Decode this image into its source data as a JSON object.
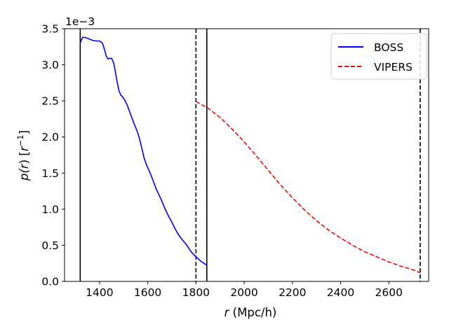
{
  "chart_data": {
    "type": "line",
    "title": "",
    "xlabel_var": "r",
    "xlabel_unit": " (Mpc/h)",
    "ylabel_left": "p(",
    "ylabel_var": "r",
    "ylabel_mid": ") [",
    "ylabel_var2": "r",
    "ylabel_exp": "−1",
    "ylabel_right": "]",
    "offset_base": "1e",
    "offset_exp": "−3",
    "xlim": [
      1255,
      2765
    ],
    "ylim": [
      0,
      3.5
    ],
    "grid": false,
    "legend_position": "top-right",
    "x_ticks": [
      1400,
      1600,
      1800,
      2000,
      2200,
      2400,
      2600
    ],
    "y_ticks": [
      0,
      0.5,
      1.0,
      1.5,
      2.0,
      2.5,
      3.0,
      3.5
    ],
    "y_tick_labels": [
      "0.0",
      "0.5",
      "1.0",
      "1.5",
      "2.0",
      "2.5",
      "3.0",
      "3.5"
    ],
    "series": [
      {
        "name": "BOSS",
        "color": "#0000ff",
        "style": "solid",
        "x": [
          1320,
          1323,
          1330,
          1340,
          1355,
          1370,
          1385,
          1400,
          1412,
          1420,
          1428,
          1435,
          1442,
          1450,
          1458,
          1465,
          1472,
          1480,
          1488,
          1495,
          1505,
          1515,
          1525,
          1535,
          1545,
          1555,
          1565,
          1575,
          1585,
          1595,
          1605,
          1615,
          1625,
          1635,
          1645,
          1655,
          1665,
          1675,
          1690,
          1700,
          1710,
          1725,
          1740,
          1760,
          1780,
          1800,
          1820,
          1840,
          1845
        ],
        "y": [
          3.3,
          3.33,
          3.38,
          3.38,
          3.36,
          3.34,
          3.33,
          3.33,
          3.3,
          3.22,
          3.12,
          3.08,
          3.09,
          3.09,
          3.03,
          2.92,
          2.78,
          2.65,
          2.58,
          2.56,
          2.51,
          2.44,
          2.35,
          2.26,
          2.17,
          2.09,
          1.99,
          1.85,
          1.71,
          1.61,
          1.54,
          1.46,
          1.37,
          1.28,
          1.21,
          1.14,
          1.06,
          0.98,
          0.88,
          0.82,
          0.75,
          0.66,
          0.59,
          0.51,
          0.41,
          0.34,
          0.28,
          0.235,
          0.225
        ]
      },
      {
        "name": "VIPERS",
        "color": "#ff0000",
        "style": "dashed",
        "x": [
          1800,
          1850,
          1900,
          1950,
          2000,
          2050,
          2100,
          2150,
          2200,
          2250,
          2300,
          2350,
          2400,
          2450,
          2500,
          2550,
          2600,
          2650,
          2700,
          2730
        ],
        "y": [
          2.49,
          2.4,
          2.27,
          2.11,
          1.93,
          1.74,
          1.54,
          1.34,
          1.16,
          0.99,
          0.84,
          0.71,
          0.6,
          0.5,
          0.41,
          0.34,
          0.27,
          0.21,
          0.16,
          0.12
        ]
      }
    ],
    "vertical_lines": [
      {
        "x": 1320,
        "style": "solid"
      },
      {
        "x": 1845,
        "style": "solid"
      },
      {
        "x": 1800,
        "style": "dashed"
      },
      {
        "x": 2730,
        "style": "dashed"
      }
    ]
  }
}
